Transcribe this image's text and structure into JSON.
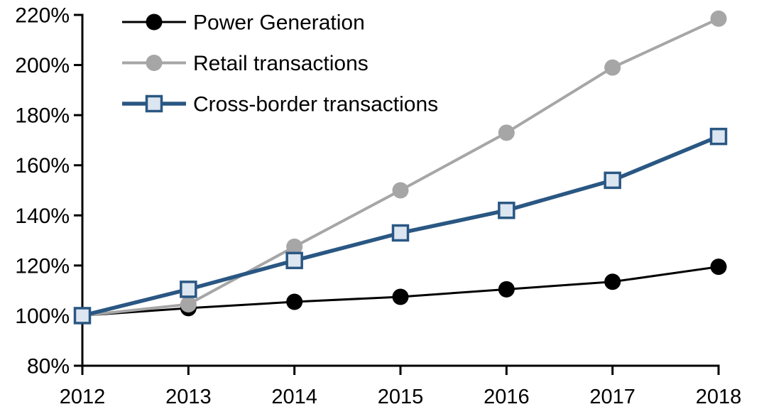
{
  "chart_data": {
    "type": "line",
    "title": "",
    "xlabel": "",
    "ylabel": "",
    "x": [
      "2012",
      "2013",
      "2014",
      "2015",
      "2016",
      "2017",
      "2018"
    ],
    "xticks": [
      "2012",
      "2013",
      "2014",
      "2015",
      "2016",
      "2017",
      "2018"
    ],
    "yticks": [
      "80%",
      "100%",
      "120%",
      "140%",
      "160%",
      "180%",
      "200%",
      "220%"
    ],
    "ytick_values": [
      80,
      100,
      120,
      140,
      160,
      180,
      200,
      220
    ],
    "ylim": [
      80,
      220
    ],
    "ytick_format": "percent",
    "grid": false,
    "legend_position": "top-left",
    "background_color": "#ffffff",
    "axis_color": "#000000",
    "series": [
      {
        "name": "Power Generation",
        "marker": "circle",
        "line_color": "#000000",
        "marker_fill": "#000000",
        "line_width": 3,
        "values": [
          100,
          103,
          105.5,
          107.5,
          110.5,
          113.5,
          119.5
        ]
      },
      {
        "name": "Retail transactions",
        "marker": "circle",
        "line_color": "#a6a6a6",
        "marker_fill": "#a6a6a6",
        "line_width": 4,
        "values": [
          100,
          104.5,
          127.5,
          150,
          173,
          199,
          218.5
        ]
      },
      {
        "name": "Cross-border transactions",
        "marker": "square",
        "line_color": "#2a5783",
        "marker_fill": "#dce6f1",
        "line_width": 5.5,
        "values": [
          100,
          110.5,
          122,
          133,
          142,
          154,
          171.5
        ]
      }
    ]
  }
}
